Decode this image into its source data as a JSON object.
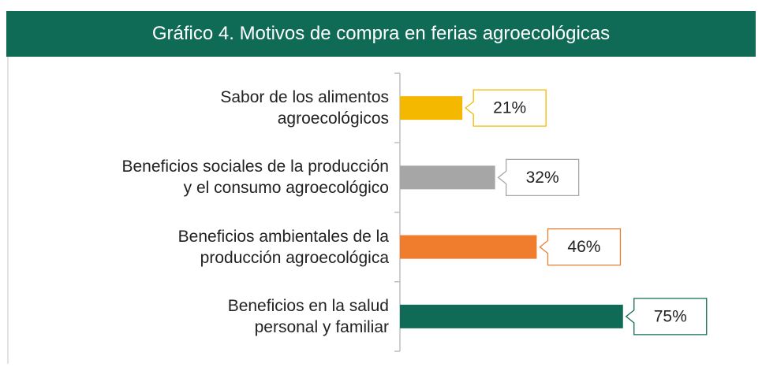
{
  "chart_data": {
    "type": "bar",
    "orientation": "horizontal",
    "title": "Gráfico 4. Motivos de compra en ferias agroecológicas",
    "categories": [
      "Sabor de los alimentos\nagroecológicos",
      "Beneficios sociales de la producción\ny el consumo agroecológico",
      "Beneficios ambientales de la\nproducción agroecológica",
      "Beneficios en la salud\npersonal y familiar"
    ],
    "values": [
      21,
      32,
      46,
      75
    ],
    "value_labels": [
      "21%",
      "32%",
      "46%",
      "75%"
    ],
    "colors": [
      "#f5b800",
      "#a6a6a6",
      "#ef7d2d",
      "#0f6b55"
    ],
    "xlim": [
      0,
      100
    ]
  }
}
